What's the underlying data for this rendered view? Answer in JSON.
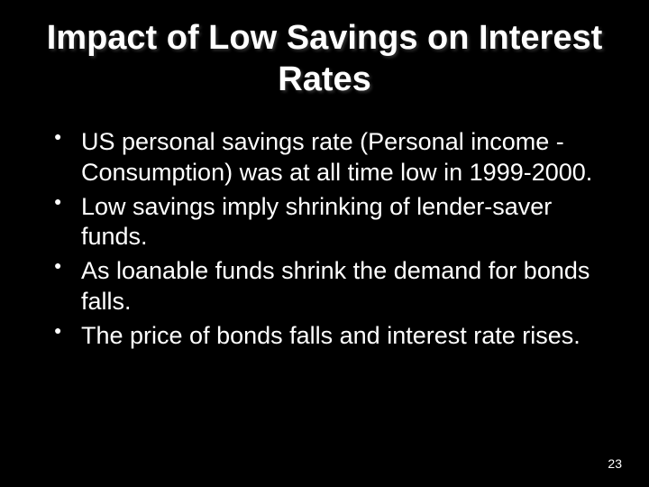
{
  "slide": {
    "title": "Impact of Low Savings on Interest Rates",
    "bullets": [
      "US personal savings rate (Personal income - Consumption) was at all time low in 1999-2000.",
      "Low savings imply shrinking of lender-saver funds.",
      "As loanable funds shrink the demand for bonds falls.",
      "The price of bonds falls and interest rate rises."
    ],
    "page_number": "23",
    "background_color": "#000000",
    "text_color": "#ffffff",
    "title_fontsize": 38,
    "body_fontsize": 27
  }
}
